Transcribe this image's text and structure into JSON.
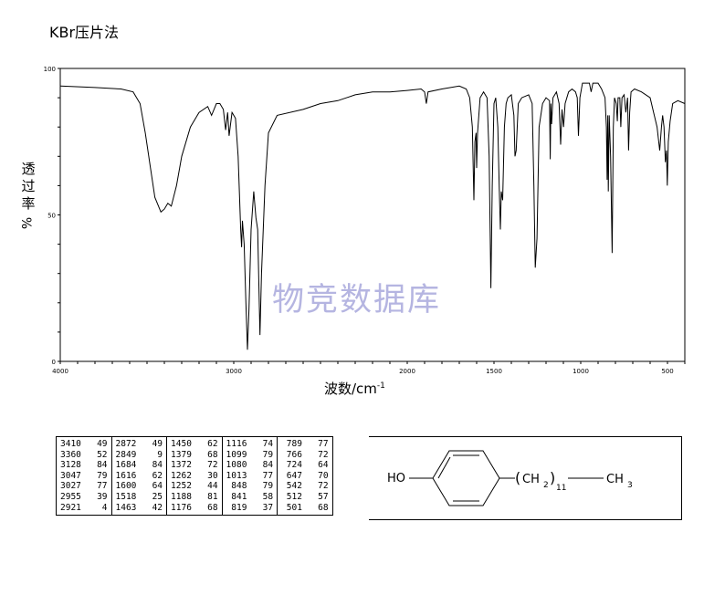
{
  "title": "KBr压片法",
  "watermark": "物竞数据库",
  "chart_data": {
    "type": "line",
    "xlabel": "波数/cm",
    "xlabel_sup": "-1",
    "ylabel_chars": [
      "透",
      "过",
      "率"
    ],
    "ylabel_unit": "%",
    "xlim": [
      4000,
      400
    ],
    "ylim": [
      0,
      100
    ],
    "x_ticks": [
      4000,
      3000,
      2000,
      1500,
      1000,
      500
    ],
    "y_ticks": [
      0,
      50,
      100
    ],
    "grid": false,
    "series": [
      {
        "points": [
          [
            4000,
            94
          ],
          [
            3800,
            93.5
          ],
          [
            3650,
            93
          ],
          [
            3580,
            92
          ],
          [
            3540,
            88
          ],
          [
            3510,
            78
          ],
          [
            3480,
            66
          ],
          [
            3455,
            56
          ],
          [
            3420,
            51
          ],
          [
            3400,
            52
          ],
          [
            3380,
            54
          ],
          [
            3360,
            53
          ],
          [
            3330,
            60
          ],
          [
            3300,
            70
          ],
          [
            3250,
            80
          ],
          [
            3200,
            85
          ],
          [
            3150,
            87
          ],
          [
            3128,
            84
          ],
          [
            3100,
            88
          ],
          [
            3080,
            88
          ],
          [
            3060,
            86
          ],
          [
            3047,
            79
          ],
          [
            3035,
            85
          ],
          [
            3027,
            77
          ],
          [
            3010,
            85
          ],
          [
            2990,
            83
          ],
          [
            2975,
            70
          ],
          [
            2960,
            45
          ],
          [
            2955,
            39
          ],
          [
            2950,
            48
          ],
          [
            2940,
            40
          ],
          [
            2930,
            20
          ],
          [
            2921,
            4
          ],
          [
            2912,
            18
          ],
          [
            2900,
            45
          ],
          [
            2885,
            58
          ],
          [
            2872,
            49
          ],
          [
            2862,
            45
          ],
          [
            2849,
            9
          ],
          [
            2840,
            30
          ],
          [
            2820,
            60
          ],
          [
            2800,
            78
          ],
          [
            2750,
            84
          ],
          [
            2600,
            86
          ],
          [
            2500,
            88
          ],
          [
            2400,
            89
          ],
          [
            2300,
            91
          ],
          [
            2200,
            92
          ],
          [
            2100,
            92
          ],
          [
            2000,
            92.5
          ],
          [
            1920,
            93
          ],
          [
            1900,
            92
          ],
          [
            1890,
            88
          ],
          [
            1880,
            92
          ],
          [
            1800,
            93
          ],
          [
            1700,
            94
          ],
          [
            1660,
            93
          ],
          [
            1640,
            90
          ],
          [
            1625,
            80
          ],
          [
            1616,
            55
          ],
          [
            1610,
            75
          ],
          [
            1603,
            78
          ],
          [
            1600,
            66
          ],
          [
            1595,
            78
          ],
          [
            1580,
            90
          ],
          [
            1560,
            92
          ],
          [
            1540,
            90
          ],
          [
            1528,
            70
          ],
          [
            1518,
            25
          ],
          [
            1510,
            60
          ],
          [
            1500,
            88
          ],
          [
            1490,
            90
          ],
          [
            1478,
            80
          ],
          [
            1470,
            60
          ],
          [
            1463,
            45
          ],
          [
            1458,
            58
          ],
          [
            1450,
            55
          ],
          [
            1440,
            80
          ],
          [
            1430,
            88
          ],
          [
            1420,
            90
          ],
          [
            1400,
            91
          ],
          [
            1385,
            84
          ],
          [
            1379,
            70
          ],
          [
            1372,
            72
          ],
          [
            1360,
            88
          ],
          [
            1340,
            90
          ],
          [
            1300,
            91
          ],
          [
            1280,
            88
          ],
          [
            1270,
            60
          ],
          [
            1262,
            32
          ],
          [
            1252,
            42
          ],
          [
            1240,
            80
          ],
          [
            1220,
            88
          ],
          [
            1200,
            90
          ],
          [
            1180,
            89
          ],
          [
            1176,
            69
          ],
          [
            1172,
            88
          ],
          [
            1168,
            81
          ],
          [
            1160,
            90
          ],
          [
            1140,
            92
          ],
          [
            1125,
            88
          ],
          [
            1116,
            74
          ],
          [
            1108,
            86
          ],
          [
            1099,
            80
          ],
          [
            1090,
            88
          ],
          [
            1070,
            92
          ],
          [
            1050,
            93
          ],
          [
            1030,
            92
          ],
          [
            1020,
            90
          ],
          [
            1013,
            77
          ],
          [
            1005,
            90
          ],
          [
            990,
            95
          ],
          [
            950,
            95
          ],
          [
            940,
            92
          ],
          [
            930,
            95
          ],
          [
            900,
            95
          ],
          [
            880,
            93
          ],
          [
            860,
            90
          ],
          [
            852,
            80
          ],
          [
            848,
            62
          ],
          [
            844,
            84
          ],
          [
            841,
            58
          ],
          [
            836,
            84
          ],
          [
            828,
            70
          ],
          [
            819,
            37
          ],
          [
            812,
            80
          ],
          [
            805,
            90
          ],
          [
            795,
            88
          ],
          [
            789,
            82
          ],
          [
            785,
            90
          ],
          [
            775,
            90
          ],
          [
            769,
            80
          ],
          [
            762,
            90
          ],
          [
            750,
            91
          ],
          [
            740,
            85
          ],
          [
            730,
            90
          ],
          [
            724,
            72
          ],
          [
            718,
            85
          ],
          [
            710,
            92
          ],
          [
            690,
            93
          ],
          [
            650,
            92
          ],
          [
            600,
            90
          ],
          [
            580,
            85
          ],
          [
            560,
            80
          ],
          [
            545,
            72
          ],
          [
            535,
            80
          ],
          [
            528,
            84
          ],
          [
            520,
            80
          ],
          [
            512,
            68
          ],
          [
            506,
            72
          ],
          [
            501,
            60
          ],
          [
            495,
            75
          ],
          [
            485,
            82
          ],
          [
            470,
            88
          ],
          [
            440,
            89
          ],
          [
            400,
            88
          ]
        ]
      }
    ]
  },
  "peak_table": [
    [
      [
        "3410",
        "49"
      ],
      [
        "3360",
        "52"
      ],
      [
        "3128",
        "84"
      ],
      [
        "3047",
        "79"
      ],
      [
        "3027",
        "77"
      ],
      [
        "2955",
        "39"
      ],
      [
        "2921",
        "4"
      ]
    ],
    [
      [
        "2872",
        "49"
      ],
      [
        "2849",
        "9"
      ],
      [
        "1684",
        "84"
      ],
      [
        "1616",
        "62"
      ],
      [
        "1600",
        "64"
      ],
      [
        "1518",
        "25"
      ],
      [
        "1463",
        "42"
      ]
    ],
    [
      [
        "1450",
        "62"
      ],
      [
        "1379",
        "68"
      ],
      [
        "1372",
        "72"
      ],
      [
        "1262",
        "30"
      ],
      [
        "1252",
        "44"
      ],
      [
        "1188",
        "81"
      ],
      [
        "1176",
        "68"
      ]
    ],
    [
      [
        "1116",
        "74"
      ],
      [
        "1099",
        "79"
      ],
      [
        "1080",
        "84"
      ],
      [
        "1013",
        "77"
      ],
      [
        "848",
        "79"
      ],
      [
        "841",
        "58"
      ],
      [
        "819",
        "37"
      ]
    ],
    [
      [
        "789",
        "77"
      ],
      [
        "766",
        "72"
      ],
      [
        "724",
        "64"
      ],
      [
        "647",
        "70"
      ],
      [
        "542",
        "72"
      ],
      [
        "512",
        "57"
      ],
      [
        "501",
        "68"
      ]
    ]
  ],
  "structure": {
    "ho": "HO",
    "ch2": "CH",
    "ch2_sub": "2",
    "repeat": "11",
    "ch3": "CH",
    "ch3_sub": "3"
  }
}
